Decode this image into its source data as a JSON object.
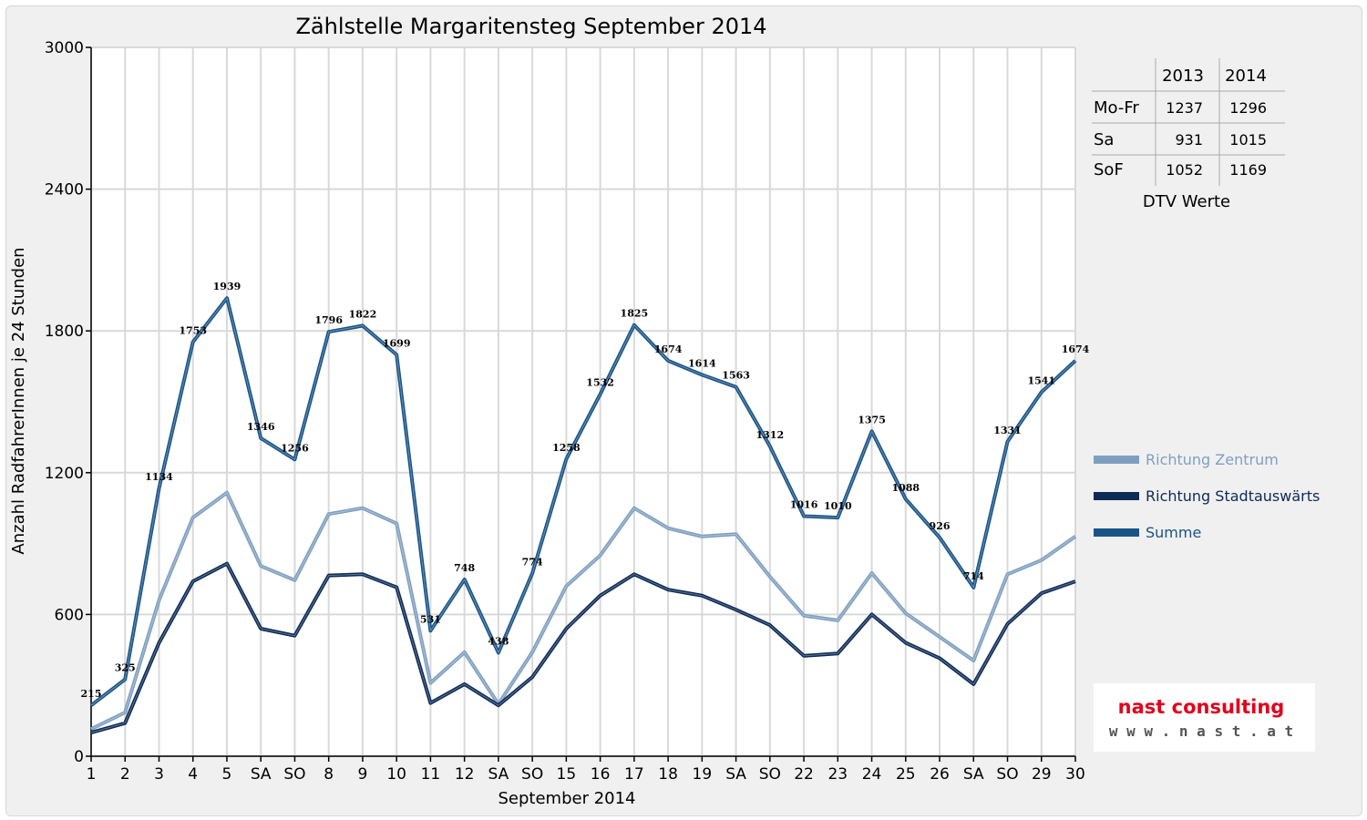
{
  "chart_data": {
    "type": "line",
    "title": "Zählstelle Margaritensteg September 2014",
    "xlabel": "September 2014",
    "ylabel": "Anzahl RadfahrerInnen je 24 Stunden",
    "ylim": [
      0,
      3000
    ],
    "yticks": [
      0,
      600,
      1200,
      1800,
      2400,
      3000
    ],
    "grid": true,
    "legend_position": "right",
    "categories": [
      "1",
      "2",
      "3",
      "4",
      "5",
      "SA",
      "SO",
      "8",
      "9",
      "10",
      "11",
      "12",
      "SA",
      "SO",
      "15",
      "16",
      "17",
      "18",
      "19",
      "SA",
      "SO",
      "22",
      "23",
      "24",
      "25",
      "26",
      "SA",
      "SO",
      "29",
      "30"
    ],
    "highlight_categories": [
      6,
      13,
      20,
      27
    ],
    "highlight_color": "#ff0000",
    "series": [
      {
        "name": "Richtung Zentrum",
        "color": "#7f9fc0",
        "values": [
          115,
          185,
          660,
          1010,
          1115,
          805,
          745,
          1025,
          1050,
          985,
          310,
          440,
          220,
          440,
          720,
          850,
          1050,
          965,
          930,
          940,
          760,
          595,
          575,
          775,
          605,
          505,
          405,
          770,
          830,
          930
        ]
      },
      {
        "name": "Richtung Stadtauswärts",
        "color": "#0d2b57",
        "values": [
          100,
          140,
          480,
          740,
          815,
          540,
          510,
          765,
          770,
          715,
          225,
          305,
          215,
          335,
          540,
          680,
          770,
          705,
          680,
          620,
          555,
          425,
          435,
          600,
          480,
          415,
          305,
          560,
          690,
          740
        ]
      },
      {
        "name": "Summe",
        "color": "#1a5486",
        "values": [
          215,
          325,
          1134,
          1753,
          1939,
          1346,
          1256,
          1796,
          1822,
          1699,
          531,
          748,
          438,
          774,
          1258,
          1532,
          1825,
          1674,
          1614,
          1563,
          1312,
          1016,
          1010,
          1375,
          1088,
          926,
          714,
          1331,
          1541,
          1674
        ],
        "data_labels": [
          "215",
          "325",
          "1134",
          "1753",
          "1939",
          "1346",
          "1256",
          "1796",
          "1822",
          "1699",
          "531",
          "748",
          "438",
          "774",
          "1258",
          "1532",
          "1825",
          "1674",
          "1614",
          "1563",
          "1312",
          "1016",
          "1010",
          "1375",
          "1088",
          "926",
          "714",
          "1331",
          "1541",
          "1674"
        ]
      }
    ]
  },
  "dtv_table": {
    "caption": "DTV Werte",
    "headers": [
      "",
      "2013",
      "2014"
    ],
    "rows": [
      {
        "label": "Mo-Fr",
        "y2013": "1237",
        "y2014": "1296"
      },
      {
        "label": "Sa",
        "y2013": "931",
        "y2014": "1015"
      },
      {
        "label": "SoF",
        "y2013": "1052",
        "y2014": "1169"
      }
    ]
  },
  "logo": {
    "brand": "nast consulting",
    "url": "w w w . n a s t . a t",
    "brand_color": "#e3001b"
  }
}
